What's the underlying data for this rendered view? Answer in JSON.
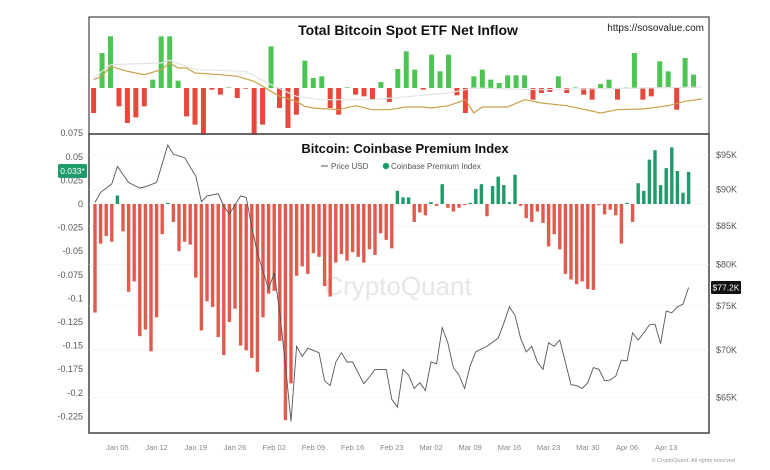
{
  "chart_data": [
    {
      "type": "bar",
      "title": "Total Bitcoin Spot ETF Net Inflow",
      "source": "https://sosovalue.com",
      "colors": {
        "positive": "#4cc552",
        "negative": "#e8473c",
        "ma": "#c9a24a",
        "ma_secondary": "#e9e9e9"
      },
      "values": [
        -75,
        105,
        155,
        -55,
        -105,
        -88,
        -55,
        25,
        155,
        155,
        22,
        -85,
        -110,
        -140,
        -5,
        -20,
        0,
        -30,
        -2,
        -140,
        -110,
        125,
        -60,
        -120,
        -80,
        82,
        30,
        35,
        -60,
        -80,
        2,
        -20,
        -25,
        -35,
        18,
        -42,
        57,
        110,
        55,
        -5,
        100,
        50,
        100,
        -22,
        -75,
        35,
        55,
        25,
        15,
        38,
        38,
        38,
        -35,
        -15,
        -12,
        35,
        -15,
        0,
        -20,
        -35,
        12,
        25,
        -35,
        0,
        105,
        -35,
        -25,
        80,
        50,
        -65,
        90,
        40
      ],
      "moving_average": [
        [
          0,
          25
        ],
        [
          1,
          35
        ],
        [
          2,
          65
        ],
        [
          4,
          50
        ],
        [
          6,
          40
        ],
        [
          8,
          55
        ],
        [
          9,
          75
        ],
        [
          10,
          60
        ],
        [
          11,
          60
        ],
        [
          12,
          45
        ],
        [
          15,
          40
        ],
        [
          17,
          35
        ],
        [
          19,
          20
        ],
        [
          20,
          5
        ],
        [
          22,
          -25
        ],
        [
          24,
          -40
        ],
        [
          25,
          -55
        ],
        [
          26,
          -60
        ],
        [
          29,
          -65
        ],
        [
          31,
          -53
        ],
        [
          33,
          -65
        ],
        [
          35,
          -65
        ],
        [
          37,
          -57
        ],
        [
          39,
          -57
        ],
        [
          40,
          -60
        ],
        [
          42,
          -53
        ],
        [
          44,
          -35
        ],
        [
          45,
          -75
        ],
        [
          46,
          -57
        ],
        [
          49,
          -57
        ],
        [
          51,
          -35
        ],
        [
          53,
          -45
        ],
        [
          56,
          -53
        ],
        [
          60,
          -75
        ],
        [
          62,
          -65
        ],
        [
          65,
          -63
        ],
        [
          68,
          -53
        ],
        [
          70,
          -40
        ],
        [
          72,
          -33
        ]
      ],
      "moving_average_secondary": [
        [
          0,
          30
        ],
        [
          2,
          70
        ],
        [
          8,
          75
        ],
        [
          9,
          83
        ],
        [
          12,
          55
        ],
        [
          18,
          50
        ],
        [
          21,
          10
        ],
        [
          24,
          -25
        ],
        [
          27,
          -35
        ],
        [
          33,
          -35
        ],
        [
          42,
          -15
        ],
        [
          45,
          0
        ],
        [
          53,
          -5
        ],
        [
          65,
          0
        ],
        [
          72,
          3
        ]
      ]
    },
    {
      "type": "bar+line",
      "title": "Bitcoin: Coinbase Premium Index",
      "watermark": "CryptoQuant",
      "copyright": "© CryptoQuant. All rights reserved",
      "legend": [
        {
          "name": "Price USD",
          "marker": "line"
        },
        {
          "name": "Coinbase Premium Index",
          "marker": "dot"
        }
      ],
      "colors": {
        "positive": "#1f9a6a",
        "negative": "#e05a4e",
        "price": "#555555",
        "current_tag": "#1f9a6a"
      },
      "x_ticks": [
        "Jan 05",
        "Jan 12",
        "Jan 19",
        "Jan 26",
        "Feb 02",
        "Feb 09",
        "Feb 16",
        "Feb 23",
        "Mar 02",
        "Mar 09",
        "Mar 16",
        "Mar 23",
        "Mar 30",
        "Apr 06",
        "Apr 13"
      ],
      "y_left": {
        "ticks": [
          "0.075",
          "0.05",
          "0.025",
          "0",
          "-0.025",
          "-0.05",
          "-0.075",
          "-0.1",
          "-0.125",
          "-0.15",
          "-0.175",
          "-0.2",
          "-0.225"
        ],
        "range": [
          -0.24,
          0.08
        ],
        "current_value_label": "0.033*"
      },
      "y_right": {
        "ticks": [
          "$95K",
          "$90K",
          "$85K",
          "$80K",
          "$75K",
          "$70K",
          "$65K"
        ],
        "scale": "log",
        "unit": "thousand USD",
        "current_price_label": "$77.2K"
      },
      "premium_index": [
        [
          "Jan 01",
          -0.115
        ],
        [
          "Jan 02",
          -0.042
        ],
        [
          "Jan 03",
          -0.034
        ],
        [
          "Jan 04",
          -0.04
        ],
        [
          "Jan 05",
          0.009
        ],
        [
          "Jan 06",
          -0.029
        ],
        [
          "Jan 07",
          -0.093
        ],
        [
          "Jan 08",
          -0.082
        ],
        [
          "Jan 09",
          -0.14
        ],
        [
          "Jan 10",
          -0.133
        ],
        [
          "Jan 11",
          -0.156
        ],
        [
          "Jan 12",
          -0.12
        ],
        [
          "Jan 13",
          -0.032
        ],
        [
          "Jan 14",
          0.001
        ],
        [
          "Jan 15",
          -0.019
        ],
        [
          "Jan 16",
          -0.05
        ],
        [
          "Jan 17",
          -0.04
        ],
        [
          "Jan 18",
          -0.043
        ],
        [
          "Jan 19",
          -0.078
        ],
        [
          "Jan 20",
          -0.134
        ],
        [
          "Jan 21",
          -0.103
        ],
        [
          "Jan 22",
          -0.109
        ],
        [
          "Jan 23",
          -0.141
        ],
        [
          "Jan 24",
          -0.16
        ],
        [
          "Jan 25",
          -0.125
        ],
        [
          "Jan 26",
          -0.111
        ],
        [
          "Jan 27",
          -0.15
        ],
        [
          "Jan 28",
          -0.155
        ],
        [
          "Jan 29",
          -0.163
        ],
        [
          "Jan 30",
          -0.178
        ],
        [
          "Jan 31",
          -0.12
        ],
        [
          "Feb 01",
          -0.095
        ],
        [
          "Feb 02",
          -0.092
        ],
        [
          "Feb 03",
          -0.145
        ],
        [
          "Feb 04",
          -0.229
        ],
        [
          "Feb 05",
          -0.19
        ],
        [
          "Feb 06",
          -0.076
        ],
        [
          "Feb 07",
          -0.066
        ],
        [
          "Feb 08",
          -0.074
        ],
        [
          "Feb 09",
          -0.052
        ],
        [
          "Feb 10",
          -0.056
        ],
        [
          "Feb 11",
          -0.087
        ],
        [
          "Feb 12",
          -0.098
        ],
        [
          "Feb 13",
          -0.062
        ],
        [
          "Feb 14",
          -0.053
        ],
        [
          "Feb 15",
          -0.06
        ],
        [
          "Feb 16",
          -0.051
        ],
        [
          "Feb 17",
          -0.056
        ],
        [
          "Feb 18",
          -0.062
        ],
        [
          "Feb 19",
          -0.048
        ],
        [
          "Feb 20",
          -0.054
        ],
        [
          "Feb 21",
          -0.031
        ],
        [
          "Feb 22",
          -0.038
        ],
        [
          "Feb 23",
          -0.047
        ],
        [
          "Feb 24",
          0.014
        ],
        [
          "Feb 25",
          0.007
        ],
        [
          "Feb 26",
          0.007
        ],
        [
          "Feb 27",
          -0.019
        ],
        [
          "Feb 28",
          -0.009
        ],
        [
          "Mar 01",
          -0.012
        ],
        [
          "Mar 02",
          0.002
        ],
        [
          "Mar 03",
          -0.002
        ],
        [
          "Mar 04",
          0.021
        ],
        [
          "Mar 05",
          -0.004
        ],
        [
          "Mar 06",
          -0.008
        ],
        [
          "Mar 07",
          -0.004
        ],
        [
          "Mar 08",
          -0.001
        ],
        [
          "Mar 09",
          0
        ],
        [
          "Mar 10",
          0.016
        ],
        [
          "Mar 11",
          0.021
        ],
        [
          "Mar 12",
          -0.013
        ],
        [
          "Mar 13",
          0.019
        ],
        [
          "Mar 14",
          0.029
        ],
        [
          "Mar 15",
          0.02
        ],
        [
          "Mar 16",
          0.002
        ],
        [
          "Mar 17",
          0.031
        ],
        [
          "Mar 18",
          -0.002
        ],
        [
          "Mar 19",
          -0.015
        ],
        [
          "Mar 20",
          -0.019
        ],
        [
          "Mar 21",
          -0.008
        ],
        [
          "Mar 22",
          -0.02
        ],
        [
          "Mar 23",
          -0.045
        ],
        [
          "Mar 24",
          -0.032
        ],
        [
          "Mar 25",
          -0.048
        ],
        [
          "Mar 26",
          -0.074
        ],
        [
          "Mar 27",
          -0.08
        ],
        [
          "Mar 28",
          -0.085
        ],
        [
          "Mar 29",
          -0.082
        ],
        [
          "Mar 30",
          -0.09
        ],
        [
          "Mar 31",
          -0.091
        ],
        [
          "Apr 01",
          -0.001
        ],
        [
          "Apr 02",
          -0.011
        ],
        [
          "Apr 03",
          -0.006
        ],
        [
          "Apr 04",
          -0.012
        ],
        [
          "Apr 05",
          -0.042
        ],
        [
          "Apr 06",
          0
        ],
        [
          "Apr 07",
          -0.019
        ],
        [
          "Apr 08",
          0.022
        ],
        [
          "Apr 09",
          0.014
        ],
        [
          "Apr 10",
          0.047
        ],
        [
          "Apr 11",
          0.057
        ],
        [
          "Apr 12",
          0.02
        ],
        [
          "Apr 13",
          0.038
        ],
        [
          "Apr 14",
          0.06
        ],
        [
          "Apr 15",
          0.035
        ],
        [
          "Apr 16",
          0.012
        ],
        [
          "Apr 17",
          0.034
        ]
      ],
      "price_usd_k": [
        [
          "Jan 01",
          88.2
        ],
        [
          "Jan 02",
          89.6
        ],
        [
          "Jan 04",
          90.8
        ],
        [
          "Jan 05",
          93.3
        ],
        [
          "Jan 07",
          91.0
        ],
        [
          "Jan 09",
          90.2
        ],
        [
          "Jan 10",
          90.4
        ],
        [
          "Jan 12",
          91.0
        ],
        [
          "Jan 14",
          96.5
        ],
        [
          "Jan 15",
          95.1
        ],
        [
          "Jan 17",
          94.6
        ],
        [
          "Jan 19",
          91.9
        ],
        [
          "Jan 20",
          88.3
        ],
        [
          "Jan 21",
          89.1
        ],
        [
          "Jan 23",
          89.4
        ],
        [
          "Jan 24",
          87.7
        ],
        [
          "Jan 25",
          86.6
        ],
        [
          "Jan 27",
          89.1
        ],
        [
          "Jan 28",
          88.9
        ],
        [
          "Jan 29",
          84.9
        ],
        [
          "Jan 30",
          81.5
        ],
        [
          "Feb 01",
          77.0
        ],
        [
          "Feb 02",
          79.0
        ],
        [
          "Feb 03",
          74.2
        ],
        [
          "Feb 04",
          68.4
        ],
        [
          "Feb 05",
          62.6
        ],
        [
          "Feb 06",
          70.4
        ],
        [
          "Feb 07",
          69.3
        ],
        [
          "Feb 08",
          70.2
        ],
        [
          "Feb 10",
          69.7
        ],
        [
          "Feb 11",
          66.7
        ],
        [
          "Feb 12",
          66.2
        ],
        [
          "Feb 13",
          68.7
        ],
        [
          "Feb 14",
          69.7
        ],
        [
          "Feb 15",
          68.7
        ],
        [
          "Feb 16",
          68.7
        ],
        [
          "Feb 18",
          66.4
        ],
        [
          "Feb 19",
          67.1
        ],
        [
          "Feb 20",
          67.9
        ],
        [
          "Feb 22",
          67.9
        ],
        [
          "Feb 23",
          64.8
        ],
        [
          "Feb 24",
          64.0
        ],
        [
          "Feb 25",
          67.9
        ],
        [
          "Feb 26",
          67.3
        ],
        [
          "Feb 27",
          65.9
        ],
        [
          "Feb 28",
          66.5
        ],
        [
          "Mar 01",
          65.7
        ],
        [
          "Mar 02",
          68.7
        ],
        [
          "Mar 03",
          68.5
        ],
        [
          "Mar 04",
          72.5
        ],
        [
          "Mar 05",
          70.8
        ],
        [
          "Mar 06",
          68.1
        ],
        [
          "Mar 07",
          67.3
        ],
        [
          "Mar 08",
          65.9
        ],
        [
          "Mar 09",
          68.3
        ],
        [
          "Mar 10",
          69.8
        ],
        [
          "Mar 12",
          70.4
        ],
        [
          "Mar 14",
          71.3
        ],
        [
          "Mar 15",
          73.0
        ],
        [
          "Mar 16",
          74.9
        ],
        [
          "Mar 17",
          73.9
        ],
        [
          "Mar 18",
          71.3
        ],
        [
          "Mar 19",
          69.8
        ],
        [
          "Mar 20",
          70.4
        ],
        [
          "Mar 21",
          68.7
        ],
        [
          "Mar 22",
          67.9
        ],
        [
          "Mar 23",
          70.8
        ],
        [
          "Mar 24",
          70.4
        ],
        [
          "Mar 25",
          71.1
        ],
        [
          "Mar 27",
          66.3
        ],
        [
          "Mar 28",
          66.2
        ],
        [
          "Mar 29",
          65.9
        ],
        [
          "Mar 30",
          66.5
        ],
        [
          "Mar 31",
          68.1
        ],
        [
          "Apr 01",
          67.9
        ],
        [
          "Apr 02",
          66.7
        ],
        [
          "Apr 03",
          66.8
        ],
        [
          "Apr 04",
          67.2
        ],
        [
          "Apr 05",
          68.9
        ],
        [
          "Apr 06",
          68.8
        ],
        [
          "Apr 07",
          71.9
        ],
        [
          "Apr 08",
          71.1
        ],
        [
          "Apr 09",
          71.9
        ],
        [
          "Apr 10",
          72.8
        ],
        [
          "Apr 11",
          72.9
        ],
        [
          "Apr 12",
          70.7
        ],
        [
          "Apr 13",
          74.4
        ],
        [
          "Apr 14",
          74.2
        ],
        [
          "Apr 15",
          74.9
        ],
        [
          "Apr 16",
          75.2
        ],
        [
          "Apr 17",
          77.2
        ]
      ]
    }
  ]
}
